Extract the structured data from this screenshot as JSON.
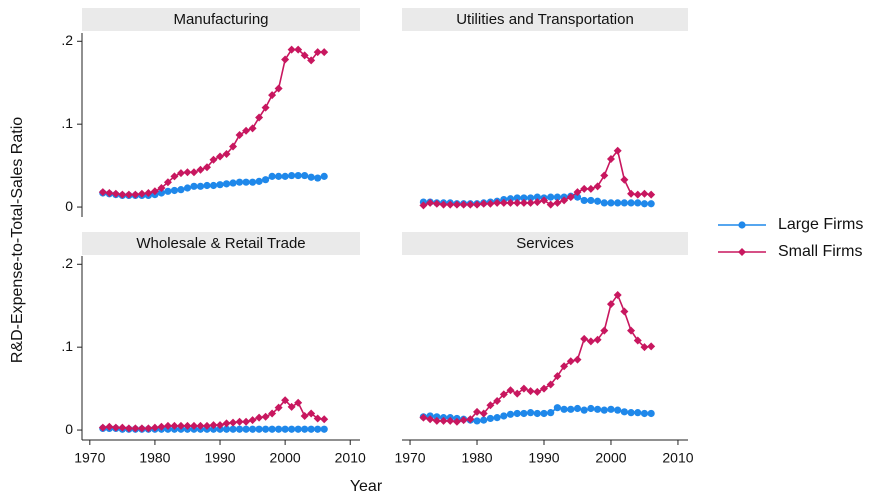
{
  "ylabel": "R&D-Expense-to-Total-Sales Ratio",
  "xlabel": "Year",
  "legend": "right",
  "chart_data": [
    {
      "type": "line",
      "title": "Manufacturing",
      "x": [
        1972,
        1973,
        1974,
        1975,
        1976,
        1977,
        1978,
        1979,
        1980,
        1981,
        1982,
        1983,
        1984,
        1985,
        1986,
        1987,
        1988,
        1989,
        1990,
        1991,
        1992,
        1993,
        1994,
        1995,
        1996,
        1997,
        1998,
        1999,
        2000,
        2001,
        2002,
        2003,
        2004,
        2005,
        2006
      ],
      "series": [
        {
          "name": "Large Firms",
          "color": "#1f88ea",
          "marker": "circle",
          "values": [
            0.017,
            0.016,
            0.015,
            0.014,
            0.014,
            0.014,
            0.014,
            0.014,
            0.015,
            0.017,
            0.019,
            0.02,
            0.021,
            0.023,
            0.025,
            0.025,
            0.026,
            0.026,
            0.027,
            0.028,
            0.029,
            0.03,
            0.03,
            0.03,
            0.031,
            0.033,
            0.037,
            0.037,
            0.037,
            0.038,
            0.038,
            0.038,
            0.036,
            0.035,
            0.037
          ]
        },
        {
          "name": "Small Firms",
          "color": "#c8175f",
          "marker": "diamond",
          "values": [
            0.018,
            0.017,
            0.016,
            0.015,
            0.015,
            0.015,
            0.016,
            0.017,
            0.019,
            0.023,
            0.03,
            0.037,
            0.041,
            0.042,
            0.042,
            0.045,
            0.048,
            0.057,
            0.061,
            0.064,
            0.073,
            0.087,
            0.092,
            0.095,
            0.108,
            0.12,
            0.135,
            0.143,
            0.178,
            0.19,
            0.19,
            0.183,
            0.177,
            0.187,
            0.187
          ]
        }
      ],
      "xlim": [
        1968.8,
        2011.5
      ],
      "ylim": [
        -0.012,
        0.21
      ],
      "yticks": [
        0,
        {
          "value": 0.1,
          "label": ".1"
        },
        {
          "value": 0.2,
          "label": ".2"
        }
      ]
    },
    {
      "type": "line",
      "title": "Utilities and Transportation",
      "x": [
        1972,
        1973,
        1974,
        1975,
        1976,
        1977,
        1978,
        1979,
        1980,
        1981,
        1982,
        1983,
        1984,
        1985,
        1986,
        1987,
        1988,
        1989,
        1990,
        1991,
        1992,
        1993,
        1994,
        1995,
        1996,
        1997,
        1998,
        1999,
        2000,
        2001,
        2002,
        2003,
        2004,
        2005,
        2006
      ],
      "series": [
        {
          "name": "Large Firms",
          "color": "#1f88ea",
          "marker": "circle",
          "values": [
            0.006,
            0.006,
            0.005,
            0.005,
            0.005,
            0.004,
            0.004,
            0.004,
            0.004,
            0.005,
            0.006,
            0.007,
            0.009,
            0.01,
            0.011,
            0.011,
            0.011,
            0.012,
            0.011,
            0.012,
            0.012,
            0.012,
            0.013,
            0.012,
            0.008,
            0.008,
            0.007,
            0.005,
            0.005,
            0.005,
            0.005,
            0.005,
            0.005,
            0.004,
            0.004
          ]
        },
        {
          "name": "Small Firms",
          "color": "#c8175f",
          "marker": "diamond",
          "values": [
            0.002,
            0.005,
            0.004,
            0.003,
            0.003,
            0.003,
            0.003,
            0.003,
            0.003,
            0.004,
            0.004,
            0.005,
            0.005,
            0.005,
            0.005,
            0.005,
            0.005,
            0.006,
            0.008,
            0.003,
            0.005,
            0.008,
            0.012,
            0.018,
            0.022,
            0.022,
            0.025,
            0.038,
            0.058,
            0.068,
            0.033,
            0.016,
            0.015,
            0.016,
            0.015
          ]
        }
      ],
      "xlim": [
        1968.8,
        2011.5
      ],
      "ylim": [
        -0.012,
        0.21
      ]
    },
    {
      "type": "line",
      "title": "Wholesale & Retail Trade",
      "x": [
        1972,
        1973,
        1974,
        1975,
        1976,
        1977,
        1978,
        1979,
        1980,
        1981,
        1982,
        1983,
        1984,
        1985,
        1986,
        1987,
        1988,
        1989,
        1990,
        1991,
        1992,
        1993,
        1994,
        1995,
        1996,
        1997,
        1998,
        1999,
        2000,
        2001,
        2002,
        2003,
        2004,
        2005,
        2006
      ],
      "series": [
        {
          "name": "Large Firms",
          "color": "#1f88ea",
          "marker": "circle",
          "values": [
            0.002,
            0.002,
            0.002,
            0.001,
            0.001,
            0.001,
            0.001,
            0.001,
            0.001,
            0.001,
            0.001,
            0.001,
            0.001,
            0.001,
            0.001,
            0.001,
            0.001,
            0.001,
            0.001,
            0.001,
            0.001,
            0.001,
            0.001,
            0.001,
            0.001,
            0.001,
            0.001,
            0.001,
            0.001,
            0.001,
            0.001,
            0.001,
            0.001,
            0.001,
            0.001
          ]
        },
        {
          "name": "Small Firms",
          "color": "#c8175f",
          "marker": "diamond",
          "values": [
            0.003,
            0.004,
            0.003,
            0.003,
            0.002,
            0.002,
            0.002,
            0.002,
            0.003,
            0.004,
            0.005,
            0.005,
            0.005,
            0.005,
            0.005,
            0.005,
            0.005,
            0.006,
            0.006,
            0.008,
            0.009,
            0.01,
            0.01,
            0.012,
            0.015,
            0.016,
            0.02,
            0.027,
            0.036,
            0.028,
            0.033,
            0.017,
            0.02,
            0.014,
            0.013
          ]
        }
      ],
      "xlim": [
        1968.8,
        2011.5
      ],
      "ylim": [
        -0.012,
        0.21
      ],
      "xticks": [
        1970,
        1980,
        1990,
        2000,
        2010
      ],
      "yticks": [
        0,
        {
          "value": 0.1,
          "label": ".1"
        },
        {
          "value": 0.2,
          "label": ".2"
        }
      ]
    },
    {
      "type": "line",
      "title": "Services",
      "x": [
        1972,
        1973,
        1974,
        1975,
        1976,
        1977,
        1978,
        1979,
        1980,
        1981,
        1982,
        1983,
        1984,
        1985,
        1986,
        1987,
        1988,
        1989,
        1990,
        1991,
        1992,
        1993,
        1994,
        1995,
        1996,
        1997,
        1998,
        1999,
        2000,
        2001,
        2002,
        2003,
        2004,
        2005,
        2006
      ],
      "series": [
        {
          "name": "Large Firms",
          "color": "#1f88ea",
          "marker": "circle",
          "values": [
            0.016,
            0.017,
            0.016,
            0.015,
            0.015,
            0.014,
            0.013,
            0.012,
            0.011,
            0.012,
            0.014,
            0.015,
            0.017,
            0.019,
            0.02,
            0.02,
            0.021,
            0.02,
            0.02,
            0.021,
            0.027,
            0.025,
            0.025,
            0.026,
            0.024,
            0.026,
            0.025,
            0.024,
            0.025,
            0.024,
            0.022,
            0.021,
            0.021,
            0.02,
            0.02
          ]
        },
        {
          "name": "Small Firms",
          "color": "#c8175f",
          "marker": "diamond",
          "values": [
            0.015,
            0.013,
            0.011,
            0.011,
            0.011,
            0.01,
            0.012,
            0.013,
            0.022,
            0.02,
            0.03,
            0.035,
            0.043,
            0.048,
            0.044,
            0.05,
            0.047,
            0.046,
            0.05,
            0.055,
            0.065,
            0.077,
            0.083,
            0.085,
            0.11,
            0.107,
            0.109,
            0.12,
            0.152,
            0.163,
            0.143,
            0.12,
            0.108,
            0.1,
            0.101
          ]
        }
      ],
      "xlim": [
        1968.8,
        2011.5
      ],
      "ylim": [
        -0.012,
        0.21
      ],
      "xticks": [
        1970,
        1980,
        1990,
        2000,
        2010
      ]
    }
  ]
}
